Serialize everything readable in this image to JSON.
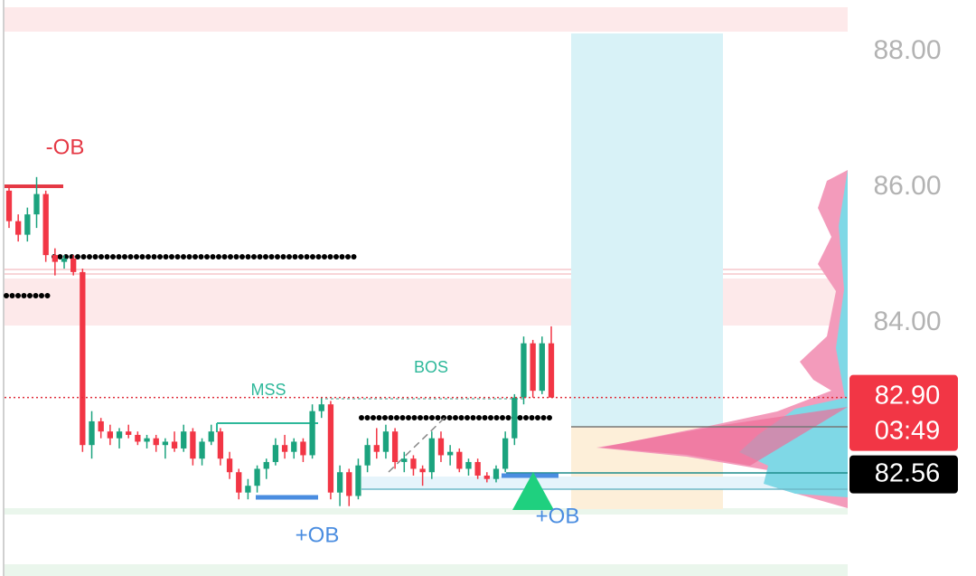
{
  "chart_data": {
    "type": "candlestick",
    "open": [
      85.95,
      85.5,
      85.3,
      85.6,
      85.9,
      85.0,
      84.9,
      84.95,
      84.75,
      82.2,
      82.55,
      82.4,
      82.3,
      82.4,
      82.35,
      82.25,
      82.3,
      82.2,
      82.25,
      82.15,
      82.4,
      82.0,
      82.25,
      82.4,
      82.0,
      81.8,
      81.5,
      81.6,
      81.85,
      81.95,
      82.2,
      82.1,
      82.25,
      82.05,
      82.7,
      82.8,
      81.5,
      81.8,
      81.45,
      81.9,
      82.2,
      82.1,
      82.4,
      81.95,
      82.0,
      81.85,
      81.8,
      82.3,
      82.05,
      82.1,
      81.85,
      81.95,
      81.75,
      81.7,
      81.85,
      82.3,
      82.9,
      83.7,
      83.0,
      83.7
    ],
    "high": [
      86.0,
      85.6,
      85.7,
      86.15,
      85.95,
      85.1,
      85.0,
      85.0,
      84.8,
      82.7,
      82.6,
      82.5,
      82.45,
      82.5,
      82.4,
      82.35,
      82.35,
      82.3,
      82.4,
      82.5,
      82.45,
      82.3,
      82.5,
      82.45,
      82.1,
      81.85,
      81.7,
      81.9,
      82.0,
      82.3,
      82.35,
      82.3,
      82.3,
      82.8,
      82.9,
      82.85,
      81.9,
      81.85,
      82.0,
      82.3,
      82.45,
      82.5,
      82.45,
      82.1,
      82.05,
      81.9,
      82.4,
      82.4,
      82.2,
      82.15,
      82.0,
      82.0,
      81.8,
      81.9,
      82.4,
      82.95,
      83.8,
      83.75,
      83.8,
      83.95
    ],
    "low": [
      85.4,
      85.2,
      85.2,
      85.4,
      84.9,
      84.7,
      84.8,
      84.7,
      82.1,
      82.0,
      82.3,
      82.2,
      82.15,
      82.3,
      82.2,
      82.15,
      82.1,
      82.0,
      82.1,
      82.1,
      81.9,
      81.9,
      82.2,
      81.9,
      81.7,
      81.4,
      81.4,
      81.5,
      81.7,
      81.9,
      82.0,
      82.0,
      81.95,
      82.0,
      82.6,
      81.4,
      81.3,
      81.3,
      81.4,
      81.8,
      82.0,
      82.0,
      81.85,
      81.8,
      81.75,
      81.6,
      81.7,
      81.95,
      81.9,
      81.8,
      81.75,
      81.7,
      81.65,
      81.65,
      81.8,
      82.2,
      82.8,
      82.9,
      82.95,
      82.9
    ],
    "close": [
      85.5,
      85.3,
      85.6,
      85.9,
      85.0,
      84.9,
      84.95,
      84.75,
      82.2,
      82.55,
      82.4,
      82.3,
      82.4,
      82.35,
      82.25,
      82.3,
      82.2,
      82.25,
      82.15,
      82.4,
      82.0,
      82.25,
      82.4,
      82.0,
      81.8,
      81.5,
      81.6,
      81.85,
      81.95,
      82.2,
      82.1,
      82.25,
      82.05,
      82.7,
      82.8,
      81.5,
      81.8,
      81.45,
      81.9,
      82.2,
      82.1,
      82.4,
      81.95,
      82.0,
      81.85,
      81.8,
      82.3,
      82.05,
      82.1,
      81.85,
      81.95,
      81.75,
      81.7,
      81.85,
      82.3,
      82.9,
      83.7,
      83.0,
      83.7,
      82.9
    ],
    "up_color": "#1ba37e",
    "down_color": "#f23645",
    "ylim": [
      80.27,
      88.76
    ],
    "yticks": [
      {
        "value": 84,
        "label": "84.00"
      },
      {
        "value": 86,
        "label": "86.00"
      },
      {
        "value": 88,
        "label": "88.00"
      }
    ],
    "grid": false,
    "last_price": {
      "value": 82.9,
      "label": "82.90"
    },
    "countdown": "03:49",
    "second_price": {
      "value": 82.56,
      "label": "82.56"
    },
    "annotations": [
      "-OB",
      "MSS",
      "BOS",
      "+OB",
      "+OB"
    ]
  }
}
